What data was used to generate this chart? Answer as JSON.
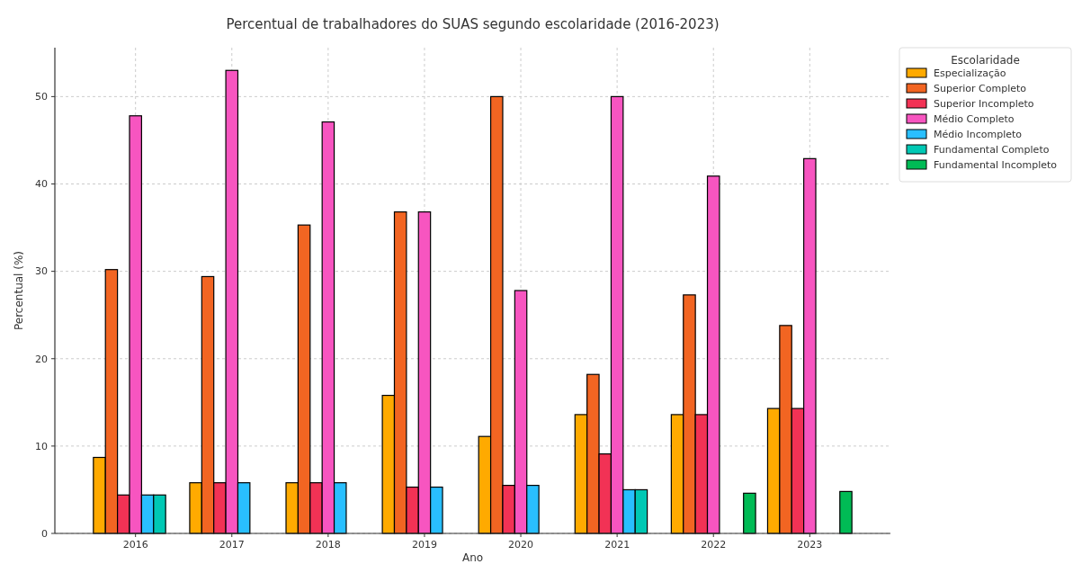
{
  "chart_data": {
    "type": "bar",
    "title": "Percentual de trabalhadores do SUAS segundo escolaridade (2016-2023)",
    "xlabel": "Ano",
    "ylabel": "Percentual (%)",
    "legend_title": "Escolaridade",
    "categories": [
      "2016",
      "2017",
      "2018",
      "2019",
      "2020",
      "2021",
      "2022",
      "2023"
    ],
    "series": [
      {
        "name": "Especialização",
        "color": "#ffaa00",
        "values": [
          8.7,
          5.8,
          5.8,
          15.8,
          11.1,
          13.6,
          13.6,
          14.3
        ]
      },
      {
        "name": "Superior Completo",
        "color": "#f26522",
        "values": [
          30.2,
          29.4,
          35.3,
          36.8,
          50,
          18.2,
          27.3,
          23.8
        ]
      },
      {
        "name": "Superior Incompleto",
        "color": "#f23255",
        "values": [
          4.4,
          5.8,
          5.8,
          5.3,
          5.5,
          9.1,
          13.6,
          14.3
        ]
      },
      {
        "name": "Médio Completo",
        "color": "#f755c0",
        "values": [
          47.8,
          53,
          47.1,
          36.8,
          27.8,
          50,
          40.9,
          42.9
        ]
      },
      {
        "name": "Médio Incompleto",
        "color": "#29bfff",
        "values": [
          4.4,
          5.8,
          5.8,
          5.3,
          5.5,
          5.0,
          null,
          null
        ]
      },
      {
        "name": "Fundamental Completo",
        "color": "#00c8b4",
        "values": [
          4.4,
          null,
          null,
          null,
          null,
          5.0,
          null,
          null
        ]
      },
      {
        "name": "Fundamental Incompleto",
        "color": "#00bb55",
        "values": [
          null,
          null,
          null,
          null,
          null,
          null,
          4.6,
          4.8
        ]
      }
    ],
    "ylim": [
      0,
      55.6
    ],
    "yticks": [
      0,
      10,
      20,
      30,
      40,
      50
    ],
    "grid": true,
    "legend": "right"
  }
}
